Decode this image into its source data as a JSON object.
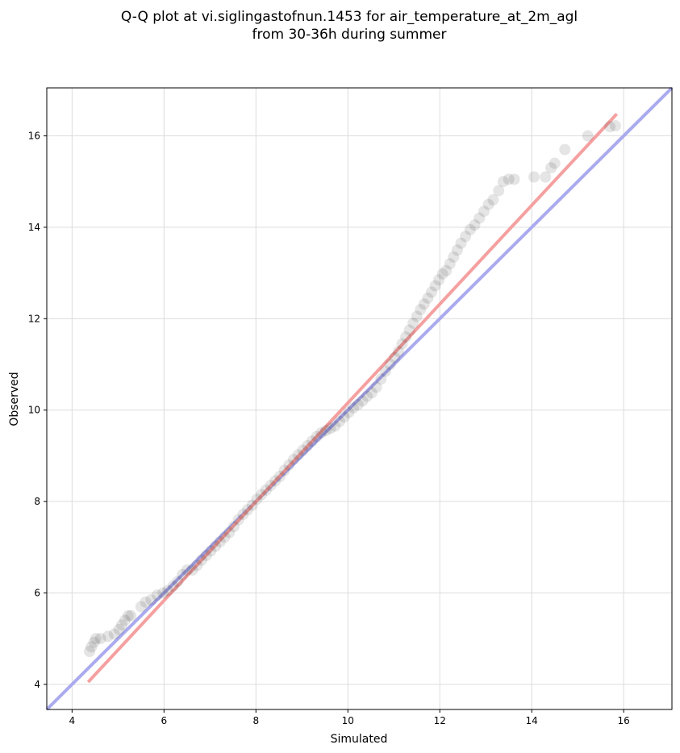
{
  "chart_data": {
    "type": "scatter",
    "title_lines": [
      "Q-Q plot at vi.siglingastofnun.1453 for air_temperature_at_2m_agl",
      "from 30-36h during summer"
    ],
    "xlabel": "Simulated",
    "ylabel": "Observed",
    "xlim": [
      3.45,
      17.05
    ],
    "ylim": [
      3.45,
      17.05
    ],
    "xticks": [
      4,
      6,
      8,
      10,
      12,
      14,
      16
    ],
    "yticks": [
      4,
      6,
      8,
      10,
      12,
      14,
      16
    ],
    "grid": true,
    "point_color": "#000000",
    "identity_line": {
      "x": [
        3.45,
        17.05
      ],
      "y": [
        3.45,
        17.05
      ],
      "color": "#aaaaee"
    },
    "fit_line": {
      "x": [
        4.35,
        15.85
      ],
      "y": [
        4.05,
        16.48
      ],
      "color": "#f5a0a0"
    },
    "points": {
      "x": [
        4.38,
        4.42,
        4.48,
        4.52,
        4.62,
        4.78,
        4.92,
        5.02,
        5.08,
        5.15,
        5.22,
        5.28,
        5.5,
        5.6,
        5.72,
        5.85,
        5.98,
        6.08,
        6.2,
        6.3,
        6.4,
        6.5,
        6.62,
        6.72,
        6.82,
        6.92,
        7.02,
        7.12,
        7.22,
        7.32,
        7.42,
        7.52,
        7.62,
        7.72,
        7.82,
        7.92,
        8.02,
        8.12,
        8.22,
        8.32,
        8.42,
        8.52,
        8.62,
        8.72,
        8.82,
        8.92,
        9.02,
        9.12,
        9.22,
        9.32,
        9.42,
        9.52,
        9.62,
        9.72,
        9.82,
        9.92,
        10.02,
        10.12,
        10.22,
        10.32,
        10.42,
        10.52,
        10.62,
        10.72,
        10.82,
        10.92,
        11.02,
        11.1,
        11.18,
        11.26,
        11.34,
        11.42,
        11.5,
        11.58,
        11.66,
        11.74,
        11.82,
        11.9,
        11.98,
        12.06,
        12.14,
        12.22,
        12.3,
        12.38,
        12.46,
        12.56,
        12.66,
        12.76,
        12.86,
        12.96,
        13.06,
        13.16,
        13.28,
        13.38,
        13.5,
        13.62,
        14.05,
        14.3,
        14.42,
        14.5,
        14.72,
        15.22,
        15.7,
        15.82
      ],
      "y": [
        4.72,
        4.82,
        4.92,
        5.0,
        5.0,
        5.05,
        5.1,
        5.2,
        5.3,
        5.4,
        5.5,
        5.5,
        5.7,
        5.8,
        5.85,
        5.95,
        6.0,
        6.05,
        6.15,
        6.25,
        6.4,
        6.5,
        6.5,
        6.6,
        6.72,
        6.82,
        6.92,
        7.02,
        7.12,
        7.22,
        7.32,
        7.45,
        7.6,
        7.72,
        7.82,
        7.92,
        8.05,
        8.15,
        8.25,
        8.35,
        8.45,
        8.55,
        8.68,
        8.8,
        8.92,
        9.02,
        9.12,
        9.22,
        9.32,
        9.42,
        9.5,
        9.55,
        9.6,
        9.65,
        9.75,
        9.85,
        9.95,
        10.05,
        10.12,
        10.2,
        10.3,
        10.38,
        10.5,
        10.68,
        10.85,
        11.0,
        11.15,
        11.28,
        11.45,
        11.6,
        11.75,
        11.9,
        12.05,
        12.2,
        12.32,
        12.45,
        12.58,
        12.72,
        12.85,
        12.98,
        13.05,
        13.2,
        13.35,
        13.5,
        13.65,
        13.8,
        13.95,
        14.05,
        14.2,
        14.35,
        14.5,
        14.6,
        14.8,
        15.0,
        15.05,
        15.05,
        15.1,
        15.1,
        15.3,
        15.4,
        15.7,
        16.0,
        16.2,
        16.22
      ]
    }
  }
}
